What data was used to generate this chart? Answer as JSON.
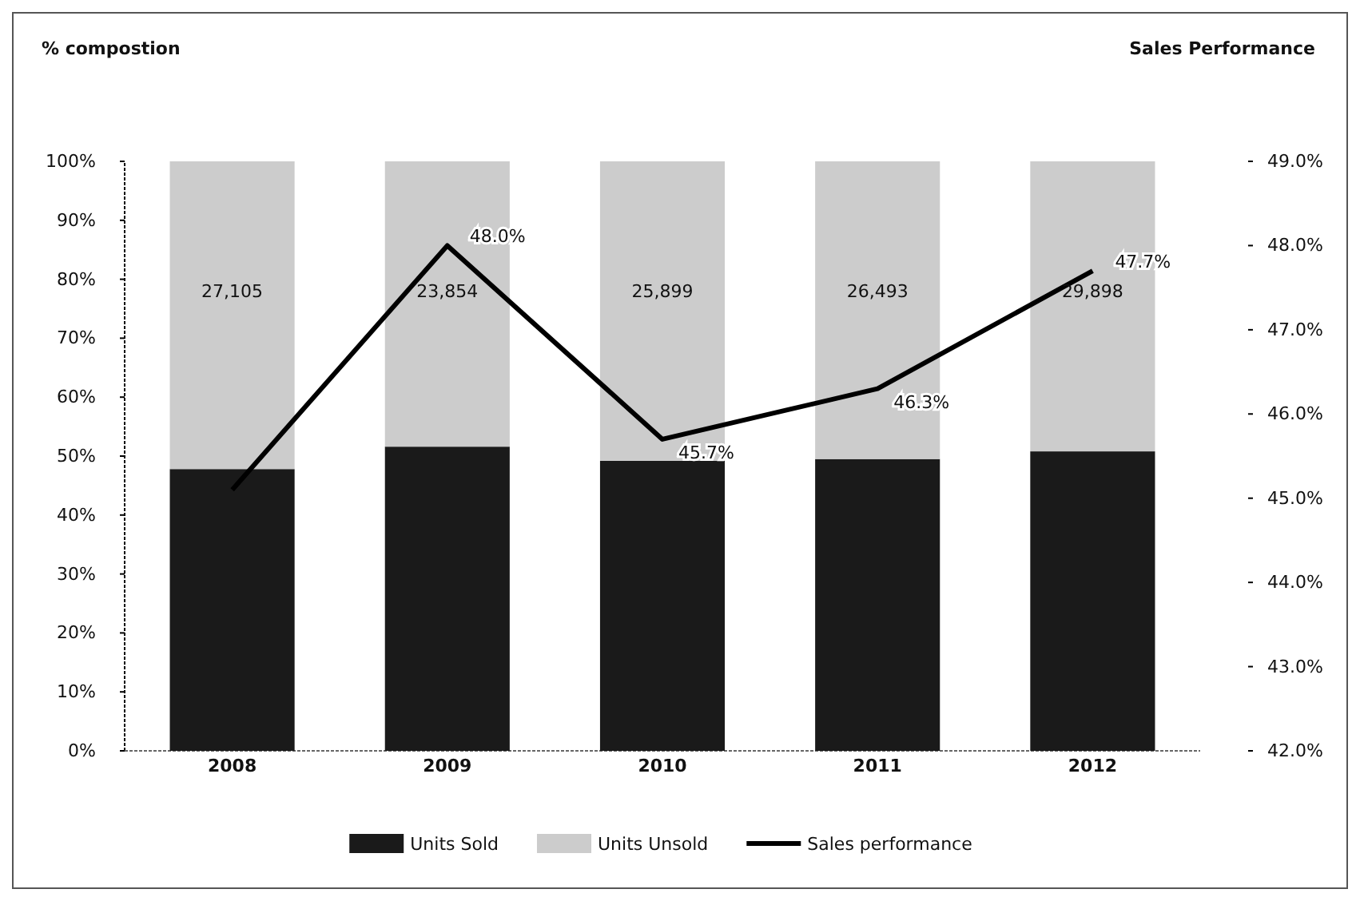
{
  "chart_data": {
    "type": "bar",
    "stacked": true,
    "annotations": [
      "% compostion",
      "Sales Performance",
      "27,105",
      "23,854",
      "25,899",
      "26,493",
      "29,898"
    ],
    "categories": [
      "2008",
      "2009",
      "2010",
      "2011",
      "2012"
    ],
    "series": [
      {
        "name": "Units Sold",
        "color": "#1a1a1a",
        "values": [
          47.8,
          51.6,
          49.2,
          49.5,
          50.8
        ]
      },
      {
        "name": "Units Unsold",
        "color": "#cccccc",
        "values": [
          52.2,
          48.4,
          50.8,
          50.5,
          49.2
        ]
      },
      {
        "name": "Sales performance",
        "type": "line",
        "axis": "y2",
        "color": "#000000",
        "values": [
          45.1,
          48.0,
          45.7,
          46.3,
          47.7
        ],
        "value_labels": [
          null,
          "48.0%",
          "45.7%",
          "46.3%",
          "47.7%"
        ]
      }
    ],
    "ylim": [
      0,
      100
    ],
    "yticks": [
      {
        "value": 0,
        "label": "0%"
      },
      {
        "value": 10,
        "label": "10%"
      },
      {
        "value": 20,
        "label": "20%"
      },
      {
        "value": 30,
        "label": "30%"
      },
      {
        "value": 40,
        "label": "40%"
      },
      {
        "value": 50,
        "label": "50%"
      },
      {
        "value": 60,
        "label": "60%"
      },
      {
        "value": 70,
        "label": "70%"
      },
      {
        "value": 80,
        "label": "80%"
      },
      {
        "value": 90,
        "label": "90%"
      },
      {
        "value": 100,
        "label": "100%"
      }
    ],
    "y2lim": [
      42,
      49
    ],
    "y2ticks": [
      {
        "value": 42,
        "label": "42.0%"
      },
      {
        "value": 43,
        "label": "43.0%"
      },
      {
        "value": 44,
        "label": "44.0%"
      },
      {
        "value": 45,
        "label": "45.0%"
      },
      {
        "value": 46,
        "label": "46.0%"
      },
      {
        "value": 47,
        "label": "47.0%"
      },
      {
        "value": 48,
        "label": "48.0%"
      },
      {
        "value": 49,
        "label": "49.0%"
      }
    ],
    "grid": false,
    "legend": "bottom",
    "marker": "none",
    "line_style": "solid"
  }
}
